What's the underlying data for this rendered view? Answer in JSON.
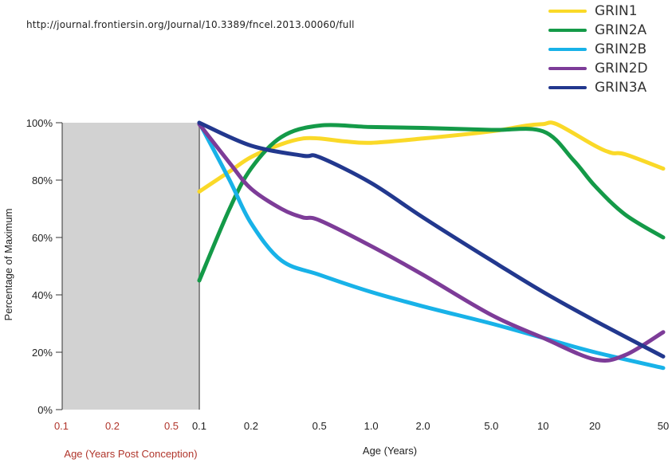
{
  "source_url": "http://journal.frontiersin.org/Journal/10.3389/fncel.2013.00060/full",
  "chart_data": {
    "type": "line",
    "title": "",
    "ylabel": "Percentage of Maximum",
    "ylim": [
      0,
      100
    ],
    "y_ticks": [
      "0%",
      "20%",
      "40%",
      "60%",
      "80%",
      "100%"
    ],
    "xlabel_prenatal": "Age (Years Post Conception)",
    "xlabel_postnatal": "Age (Years)",
    "x_ticks_prenatal": [
      "0.1",
      "0.2",
      "0.5"
    ],
    "x_ticks_postnatal": [
      "0.1",
      "0.2",
      "0.5",
      "1.0",
      "2.0",
      "5.0",
      "10",
      "20",
      "50"
    ],
    "x_scale": "log",
    "prenatal_region": "shaded grey",
    "legend_position": "top-right",
    "series": [
      {
        "name": "GRIN1",
        "color": "#fad928",
        "points": [
          [
            0.1,
            76
          ],
          [
            0.15,
            83
          ],
          [
            0.2,
            88
          ],
          [
            0.3,
            92.5
          ],
          [
            0.4,
            94.5
          ],
          [
            0.5,
            94.5
          ],
          [
            0.7,
            93.5
          ],
          [
            1.0,
            93
          ],
          [
            2.0,
            94.5
          ],
          [
            5.0,
            97
          ],
          [
            8.0,
            99
          ],
          [
            10,
            99.5
          ],
          [
            12,
            99.5
          ],
          [
            20,
            92
          ],
          [
            25,
            89.5
          ],
          [
            30,
            89
          ],
          [
            50,
            84
          ]
        ]
      },
      {
        "name": "GRIN2A",
        "color": "#149a48",
        "points": [
          [
            0.1,
            45
          ],
          [
            0.15,
            70
          ],
          [
            0.2,
            84
          ],
          [
            0.3,
            95
          ],
          [
            0.5,
            99
          ],
          [
            1.0,
            98.5
          ],
          [
            2.0,
            98.2
          ],
          [
            5.0,
            97.5
          ],
          [
            10,
            97
          ],
          [
            15,
            87
          ],
          [
            20,
            78
          ],
          [
            30,
            68
          ],
          [
            50,
            60
          ]
        ]
      },
      {
        "name": "GRIN2B",
        "color": "#18b2e8",
        "points": [
          [
            0.1,
            100
          ],
          [
            0.15,
            80
          ],
          [
            0.2,
            65
          ],
          [
            0.3,
            52
          ],
          [
            0.5,
            47
          ],
          [
            1.0,
            41
          ],
          [
            2.0,
            36
          ],
          [
            5.0,
            30
          ],
          [
            10,
            25
          ],
          [
            20,
            20
          ],
          [
            50,
            14.5
          ]
        ]
      },
      {
        "name": "GRIN2D",
        "color": "#7d3c98",
        "points": [
          [
            0.1,
            99.5
          ],
          [
            0.15,
            86
          ],
          [
            0.2,
            77
          ],
          [
            0.3,
            70
          ],
          [
            0.4,
            67
          ],
          [
            0.5,
            66
          ],
          [
            1.0,
            57
          ],
          [
            2.0,
            47
          ],
          [
            5.0,
            33
          ],
          [
            10,
            25
          ],
          [
            20,
            17.5
          ],
          [
            30,
            19
          ],
          [
            50,
            27
          ]
        ]
      },
      {
        "name": "GRIN3A",
        "color": "#22388e",
        "points": [
          [
            0.1,
            100
          ],
          [
            0.2,
            92
          ],
          [
            0.4,
            88.5
          ],
          [
            0.5,
            88
          ],
          [
            1.0,
            79
          ],
          [
            2.0,
            67
          ],
          [
            5.0,
            52
          ],
          [
            10,
            41
          ],
          [
            20,
            31
          ],
          [
            50,
            18.5
          ]
        ]
      }
    ]
  }
}
